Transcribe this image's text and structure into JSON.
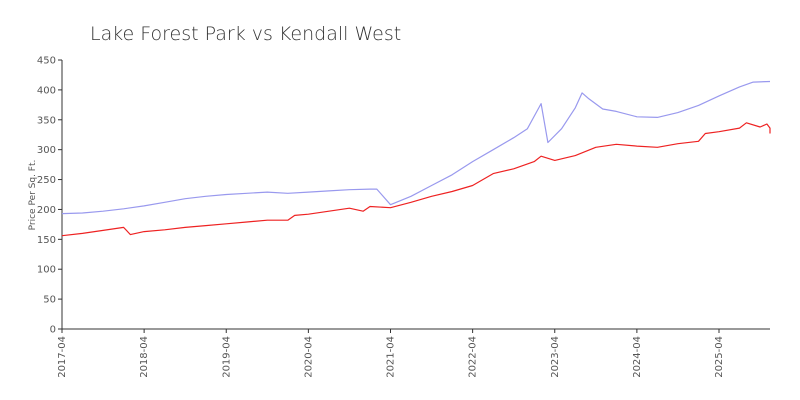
{
  "chart_data": {
    "type": "line",
    "title": "Lake Forest Park vs Kendall West",
    "xlabel": "",
    "ylabel": "Price Per Sq. Ft.",
    "ylim": [
      0,
      450
    ],
    "yticks": [
      0,
      50,
      100,
      150,
      200,
      250,
      300,
      350,
      400,
      450
    ],
    "xticks": [
      "2017-04",
      "2018-04",
      "2019-04",
      "2020-04",
      "2021-04",
      "2022-04",
      "2023-04",
      "2024-04",
      "2025-04"
    ],
    "x_range": [
      "2017-04",
      "2025-12"
    ],
    "grid": false,
    "legend": "none",
    "series": [
      {
        "color": "#9999ee",
        "points": [
          [
            "2017-04",
            193
          ],
          [
            "2017-07",
            194
          ],
          [
            "2017-10",
            197
          ],
          [
            "2018-01",
            201
          ],
          [
            "2018-04",
            206
          ],
          [
            "2018-07",
            212
          ],
          [
            "2018-10",
            218
          ],
          [
            "2019-01",
            222
          ],
          [
            "2019-04",
            225
          ],
          [
            "2019-07",
            227
          ],
          [
            "2019-10",
            229
          ],
          [
            "2020-01",
            227
          ],
          [
            "2020-04",
            229
          ],
          [
            "2020-07",
            231
          ],
          [
            "2020-10",
            233
          ],
          [
            "2021-01",
            234
          ],
          [
            "2021-02",
            234
          ],
          [
            "2021-04",
            208
          ],
          [
            "2021-07",
            222
          ],
          [
            "2021-10",
            240
          ],
          [
            "2022-01",
            258
          ],
          [
            "2022-04",
            280
          ],
          [
            "2022-07",
            300
          ],
          [
            "2022-10",
            320
          ],
          [
            "2022-12",
            335
          ],
          [
            "2023-02",
            377
          ],
          [
            "2023-03",
            312
          ],
          [
            "2023-05",
            335
          ],
          [
            "2023-07",
            370
          ],
          [
            "2023-08",
            395
          ],
          [
            "2023-09",
            385
          ],
          [
            "2023-11",
            368
          ],
          [
            "2024-01",
            364
          ],
          [
            "2024-04",
            355
          ],
          [
            "2024-07",
            354
          ],
          [
            "2024-10",
            362
          ],
          [
            "2025-01",
            374
          ],
          [
            "2025-04",
            390
          ],
          [
            "2025-07",
            405
          ],
          [
            "2025-09",
            413
          ],
          [
            "2025-12",
            414
          ]
        ]
      },
      {
        "color": "#ee2222",
        "points": [
          [
            "2017-04",
            156
          ],
          [
            "2017-07",
            160
          ],
          [
            "2017-10",
            165
          ],
          [
            "2018-01",
            170
          ],
          [
            "2018-02",
            158
          ],
          [
            "2018-04",
            163
          ],
          [
            "2018-07",
            166
          ],
          [
            "2018-10",
            170
          ],
          [
            "2019-01",
            173
          ],
          [
            "2019-04",
            176
          ],
          [
            "2019-07",
            179
          ],
          [
            "2019-10",
            182
          ],
          [
            "2020-01",
            182
          ],
          [
            "2020-02",
            190
          ],
          [
            "2020-04",
            192
          ],
          [
            "2020-07",
            197
          ],
          [
            "2020-10",
            202
          ],
          [
            "2020-12",
            197
          ],
          [
            "2021-01",
            205
          ],
          [
            "2021-04",
            203
          ],
          [
            "2021-07",
            212
          ],
          [
            "2021-10",
            222
          ],
          [
            "2022-01",
            230
          ],
          [
            "2022-04",
            240
          ],
          [
            "2022-07",
            260
          ],
          [
            "2022-10",
            268
          ],
          [
            "2023-01",
            280
          ],
          [
            "2023-02",
            289
          ],
          [
            "2023-04",
            282
          ],
          [
            "2023-07",
            290
          ],
          [
            "2023-10",
            304
          ],
          [
            "2024-01",
            309
          ],
          [
            "2024-04",
            306
          ],
          [
            "2024-07",
            304
          ],
          [
            "2024-10",
            310
          ],
          [
            "2025-01",
            314
          ],
          [
            "2025-02",
            327
          ],
          [
            "2025-04",
            330
          ],
          [
            "2025-07",
            336
          ],
          [
            "2025-08",
            345
          ],
          [
            "2025-10",
            338
          ],
          [
            "2025-11",
            343
          ],
          [
            "2025-12",
            336
          ],
          [
            "2026-01",
            327
          ]
        ]
      }
    ]
  }
}
